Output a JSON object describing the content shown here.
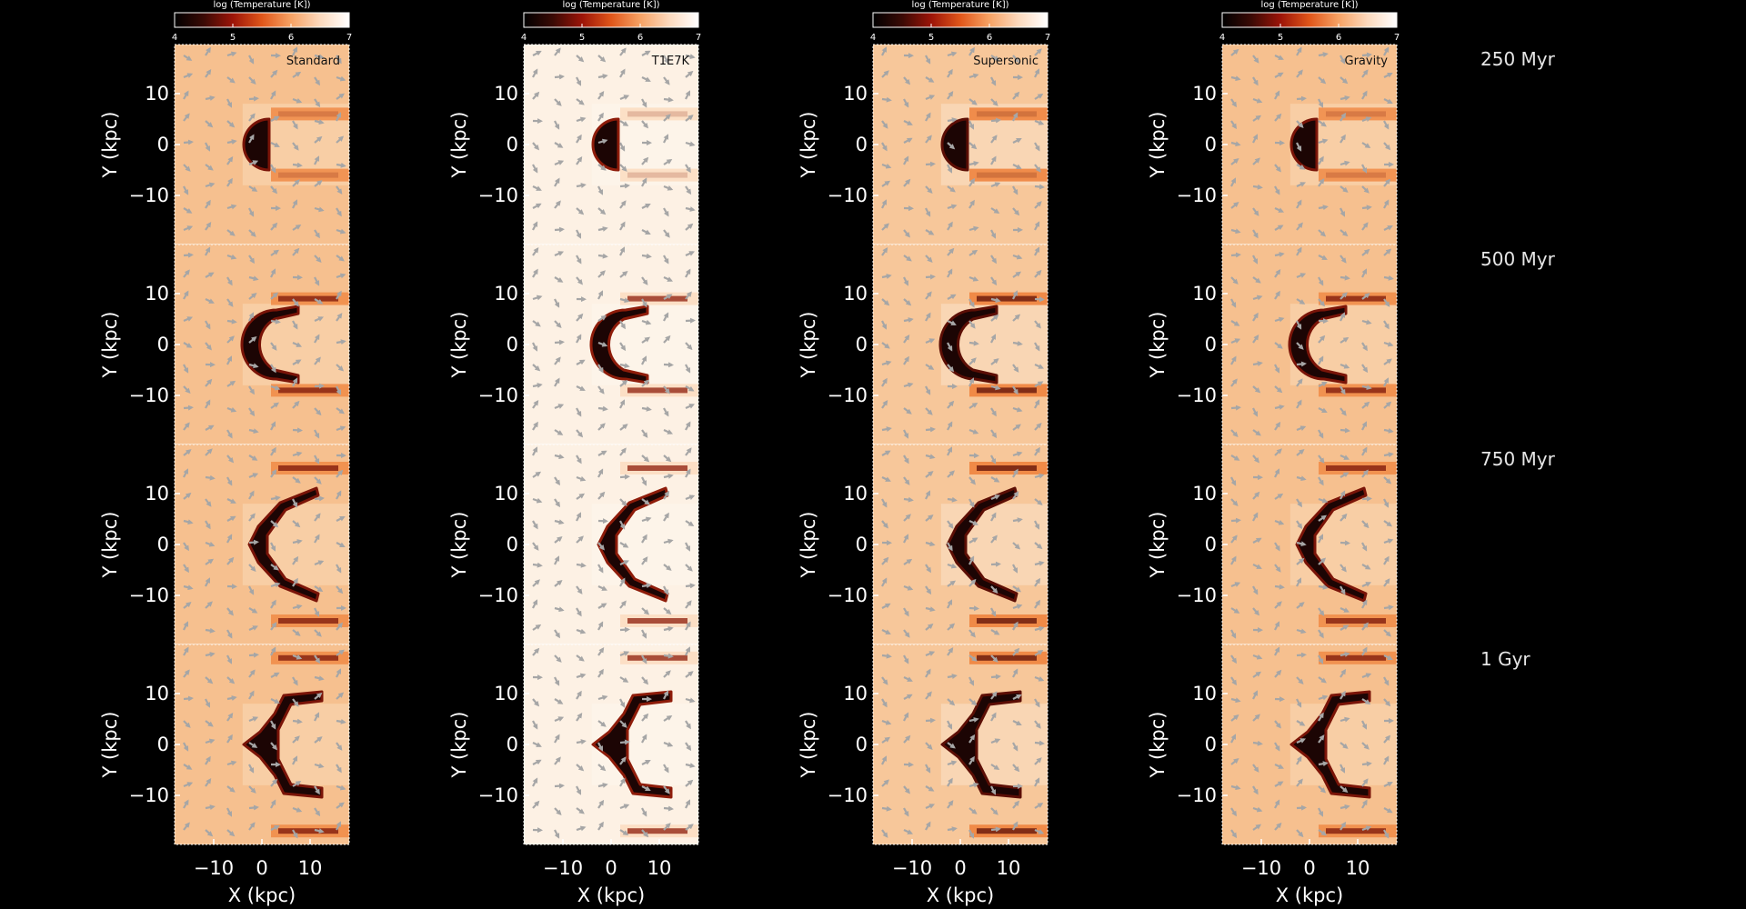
{
  "colorbar": {
    "title": "log (Temperature [K])",
    "ticks": [
      "4",
      "5",
      "6",
      "7"
    ],
    "stops": [
      "#000000",
      "#3a0a05",
      "#9c1408",
      "#e0561a",
      "#f7a264",
      "#fcd9bd",
      "#ffffff"
    ]
  },
  "runs": [
    {
      "label": "Standard",
      "ambient": "#f6c08f",
      "tail": "#f08a45",
      "wake": "#f9d9b8",
      "rim": "#7a1408"
    },
    {
      "label": "T1E7K",
      "ambient": "#fdf1e4",
      "tail": "#fcdcc0",
      "wake": "#fef6ec",
      "rim": "#8e1c0a"
    },
    {
      "label": "Supersonic",
      "ambient": "#f7c79a",
      "tail": "#ef7f38",
      "wake": "#fbe2cb",
      "rim": "#5c0e05"
    },
    {
      "label": "Gravity",
      "ambient": "#f6c08f",
      "tail": "#f08a45",
      "wake": "#f9d9b8",
      "rim": "#7a1408"
    }
  ],
  "times": [
    "250 Myr",
    "500 Myr",
    "750 Myr",
    "1 Gyr"
  ],
  "axes": {
    "ylabel": "Y (kpc)",
    "xlabel": "X (kpc)",
    "yticks": [
      "10",
      "0",
      "−10"
    ],
    "xticks": [
      "−10",
      "0",
      "10"
    ]
  },
  "arrow_color": "#a6a6a6",
  "dense_gas_color": "#1c0504"
}
